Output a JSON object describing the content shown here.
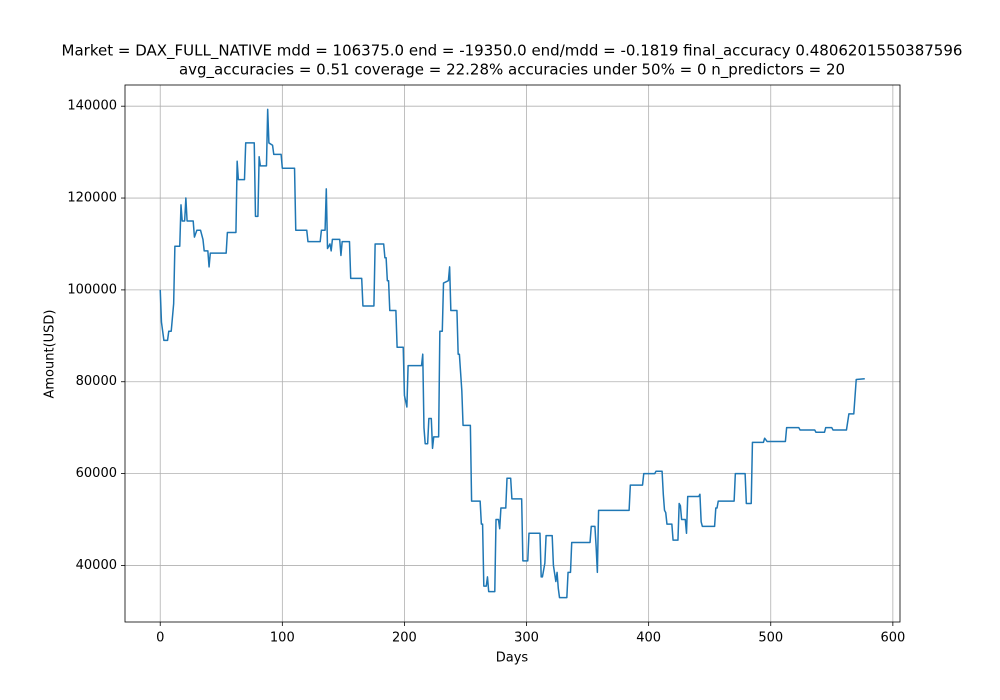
{
  "chart_data": {
    "type": "line",
    "title": "Market = DAX_FULL_NATIVE mdd = 106375.0 end = -19350.0 end/mdd = -0.1819 final_accuracy 0.4806201550387596",
    "subtitle": "avg_accuracies = 0.51 coverage = 22.28%  accuracies under 50% = 0 n_predictors = 20",
    "xlabel": "Days",
    "ylabel": "Amount(USD)",
    "color": "#1f77b4",
    "grid": true,
    "xlim": [
      -28.85,
      605.85
    ],
    "ylim": [
      27685,
      144615
    ],
    "xticks": [
      0,
      100,
      200,
      300,
      400,
      500,
      600
    ],
    "yticks": [
      40000,
      60000,
      80000,
      100000,
      120000,
      140000
    ],
    "x": [
      0,
      1,
      3,
      6,
      7,
      9,
      11,
      12,
      16,
      17,
      18,
      20,
      21,
      22,
      27,
      28,
      30,
      33,
      35,
      36,
      39,
      40,
      41,
      54,
      55,
      62,
      63,
      64,
      69,
      70,
      77,
      78,
      80,
      81,
      82,
      87,
      88,
      89,
      92,
      93,
      99,
      100,
      110,
      111,
      120,
      121,
      131,
      132,
      135,
      136,
      137,
      139,
      140,
      141,
      147,
      148,
      149,
      155,
      156,
      165,
      166,
      175,
      176,
      183,
      184,
      185,
      186,
      187,
      188,
      193,
      194,
      199,
      200,
      202,
      203,
      214,
      215,
      216,
      217,
      219,
      220,
      222,
      223,
      224,
      228,
      229,
      231,
      232,
      236,
      237,
      238,
      243,
      244,
      245,
      247,
      248,
      254,
      255,
      262,
      263,
      264,
      265,
      267,
      268,
      269,
      274,
      275,
      277,
      278,
      279,
      283,
      284,
      287,
      288,
      296,
      297,
      301,
      302,
      311,
      312,
      313,
      315,
      316,
      321,
      322,
      324,
      325,
      326,
      327,
      333,
      334,
      336,
      337,
      352,
      353,
      356,
      357,
      358,
      359,
      384,
      385,
      395,
      396,
      405,
      406,
      411,
      412,
      413,
      414,
      415,
      419,
      420,
      424,
      425,
      426,
      427,
      430,
      431,
      432,
      441,
      442,
      443,
      444,
      454,
      455,
      456,
      457,
      470,
      471,
      479,
      480,
      484,
      485,
      494,
      495,
      497,
      512,
      513,
      523,
      524,
      536,
      537,
      544,
      545,
      550,
      551,
      562,
      564,
      568,
      570,
      577
    ],
    "values": [
      100000,
      93000,
      89000,
      89000,
      91000,
      91000,
      97000,
      109500,
      109500,
      118500,
      115000,
      115000,
      120000,
      115000,
      115000,
      111500,
      113000,
      113000,
      111000,
      108500,
      108500,
      105000,
      108000,
      108000,
      112500,
      112500,
      128000,
      124000,
      124000,
      132000,
      132000,
      116000,
      116000,
      129000,
      127000,
      127000,
      139300,
      132000,
      131500,
      129500,
      129500,
      126500,
      126500,
      113000,
      113000,
      110500,
      110500,
      113000,
      113000,
      122000,
      109000,
      110000,
      108500,
      111000,
      111000,
      107500,
      110500,
      110500,
      102500,
      102500,
      96500,
      96500,
      110000,
      110000,
      107000,
      107000,
      102000,
      102000,
      95500,
      95500,
      87500,
      87500,
      77000,
      74500,
      83500,
      83500,
      86000,
      70000,
      66500,
      66500,
      72000,
      72000,
      65500,
      68000,
      68000,
      91000,
      91000,
      101500,
      102000,
      105000,
      95500,
      95500,
      86000,
      86000,
      78000,
      70500,
      70500,
      54000,
      54000,
      49000,
      49000,
      35500,
      35500,
      37500,
      34300,
      34300,
      50000,
      50000,
      48000,
      52500,
      52500,
      59000,
      59000,
      54500,
      54500,
      41000,
      41000,
      47000,
      47000,
      37500,
      37500,
      40500,
      46500,
      46500,
      40000,
      36500,
      38500,
      35000,
      33000,
      33000,
      38500,
      38500,
      45000,
      45000,
      48500,
      48500,
      44000,
      38500,
      52000,
      52000,
      57500,
      57500,
      60000,
      60000,
      60500,
      60500,
      55500,
      52000,
      51500,
      49000,
      49000,
      45500,
      45500,
      53500,
      53000,
      50000,
      50000,
      47000,
      55000,
      55000,
      55500,
      49500,
      48500,
      48500,
      52500,
      52500,
      54000,
      54000,
      60000,
      60000,
      53500,
      53500,
      66800,
      66800,
      67700,
      67000,
      67000,
      70000,
      70000,
      69500,
      69500,
      69000,
      69000,
      70000,
      70000,
      69500,
      69500,
      73000,
      73000,
      80500,
      80650
    ]
  }
}
